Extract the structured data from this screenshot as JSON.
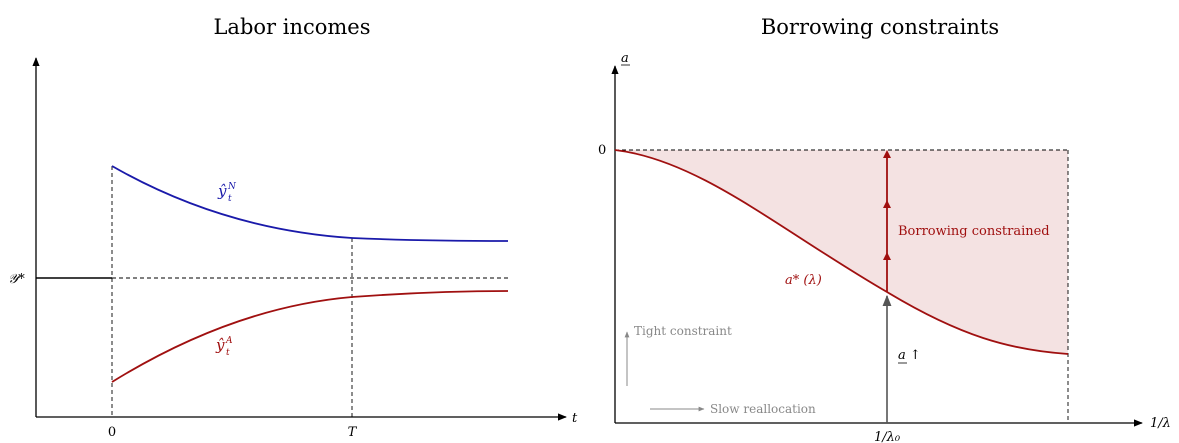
{
  "left_panel": {
    "title": "Labor incomes",
    "x_axis_label": "t",
    "y_star_label": "𝒴*",
    "tick_zero": "0",
    "tick_T": "T",
    "curve_n_label": "ŷ",
    "curve_n_sub": "t",
    "curve_n_sup": "N",
    "curve_a_label": "ŷ",
    "curve_a_sub": "t",
    "curve_a_sup": "A",
    "colors": {
      "n_curve": "#1a1aaa",
      "a_curve": "#a01010"
    }
  },
  "right_panel": {
    "title": "Borrowing constraints",
    "y_axis_label": "a",
    "x_axis_label": "1/λ",
    "tick_zero": "0",
    "tick_lambda0": "1/λ₀",
    "curve_label": "a* (λ)",
    "region_label": "Borrowing constrained",
    "arrow_label": "a ↑",
    "legend_tight": "Tight constraint",
    "legend_slow": "Slow reallocation",
    "colors": {
      "curve": "#a01010",
      "fill": "#f4e2e2",
      "grey": "#888888"
    }
  }
}
